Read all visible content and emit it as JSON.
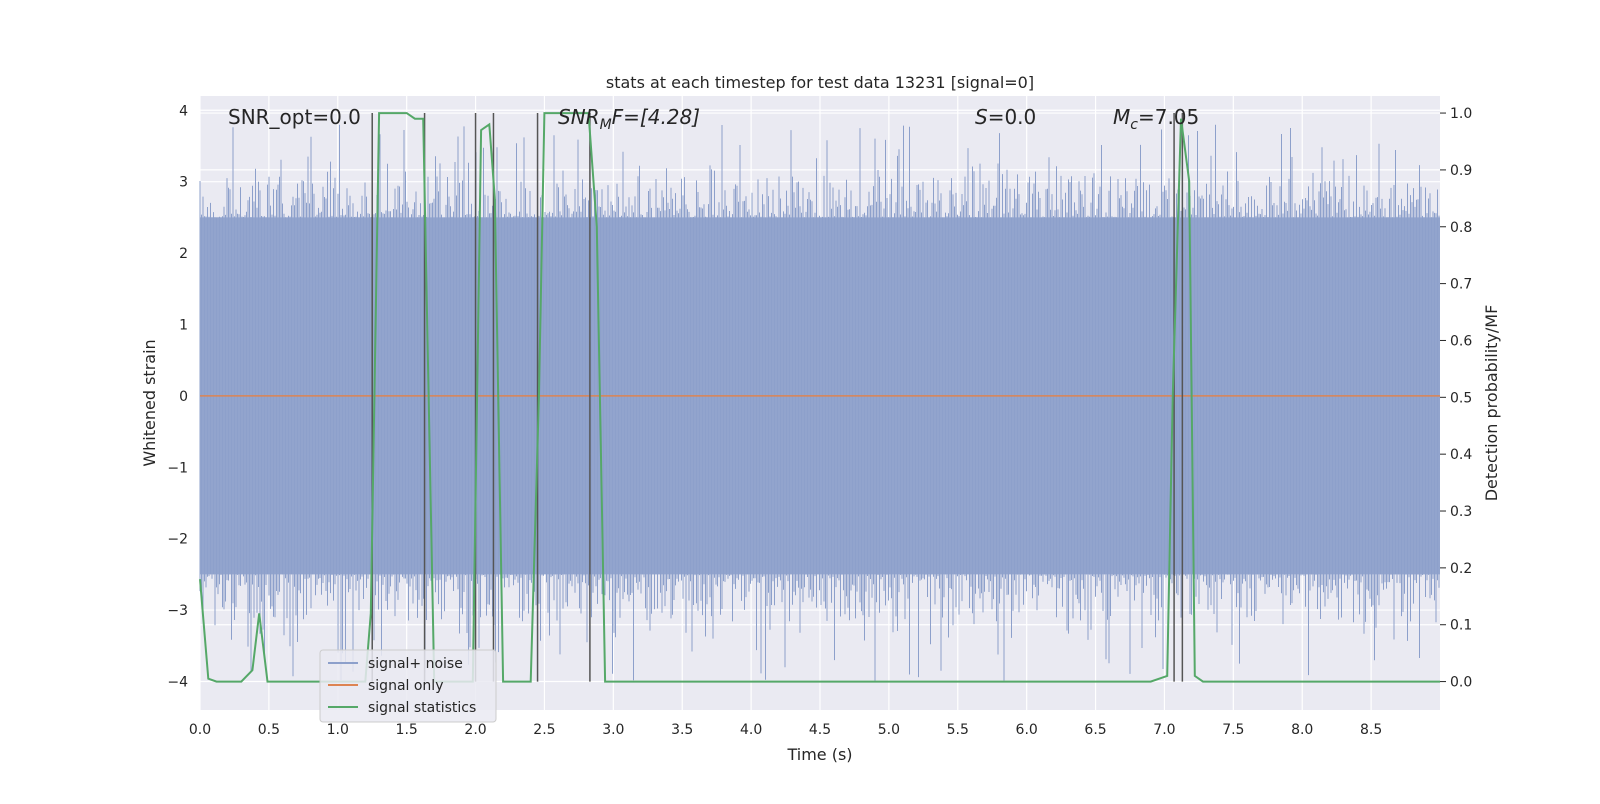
{
  "chart_data": {
    "type": "line",
    "title": "stats at each timestep for test data 13231 [signal=0]",
    "xlabel": "Time (s)",
    "ylabel": "Whitened strain",
    "y2label": "Detection probability/MF",
    "xlim": [
      0.0,
      9.0
    ],
    "ylim": [
      -4.4,
      4.2
    ],
    "y2lim": [
      -0.05,
      1.03
    ],
    "xticks": [
      0.0,
      0.5,
      1.0,
      1.5,
      2.0,
      2.5,
      3.0,
      3.5,
      4.0,
      4.5,
      5.0,
      5.5,
      6.0,
      6.5,
      7.0,
      7.5,
      8.0,
      8.5
    ],
    "xtick_labels": [
      "0.0",
      "0.5",
      "1.0",
      "1.5",
      "2.0",
      "2.5",
      "3.0",
      "3.5",
      "4.0",
      "4.5",
      "5.0",
      "5.5",
      "6.0",
      "6.5",
      "7.0",
      "7.5",
      "8.0",
      "8.5"
    ],
    "yticks": [
      -4,
      -3,
      -2,
      -1,
      0,
      1,
      2,
      3,
      4
    ],
    "ytick_labels": [
      "−4",
      "−3",
      "−2",
      "−1",
      "0",
      "1",
      "2",
      "3",
      "4"
    ],
    "y2ticks": [
      0.0,
      0.1,
      0.2,
      0.3,
      0.4,
      0.5,
      0.6,
      0.7,
      0.8,
      0.9,
      1.0
    ],
    "y2tick_labels": [
      "0.0",
      "0.1",
      "0.2",
      "0.3",
      "0.4",
      "0.5",
      "0.6",
      "0.7",
      "0.8",
      "0.9",
      "1.0"
    ],
    "grid": true,
    "legend_position": "lower-left",
    "annotations": {
      "snr_opt": "SNR_opt=0.0",
      "snr_mf_base": "SNR",
      "snr_mf_sub": "M",
      "snr_mf_rest": "F=[4.28]",
      "s_base": "S",
      "s_rest": "=0.0",
      "mc_base": "M",
      "mc_sub": "c",
      "mc_rest": "=7.05"
    },
    "series": [
      {
        "name": "signal+ noise",
        "color": "#8da0cb",
        "style": "noise-band",
        "band_ylim": [
          -2.5,
          2.5
        ],
        "peak_range": [
          -4.0,
          3.8
        ]
      },
      {
        "name": "signal only",
        "color": "#dd8452",
        "x": [
          0.0,
          9.0
        ],
        "y": [
          0.0,
          0.0
        ]
      },
      {
        "name": "signal statistics",
        "color": "#55a868",
        "axis": "right",
        "x": [
          0.0,
          0.06,
          0.12,
          0.2,
          0.3,
          0.38,
          0.43,
          0.49,
          0.55,
          1.0,
          1.2,
          1.24,
          1.3,
          1.36,
          1.42,
          1.5,
          1.56,
          1.62,
          1.7,
          1.8,
          1.9,
          1.98,
          2.04,
          2.1,
          2.14,
          2.2,
          2.3,
          2.4,
          2.46,
          2.5,
          2.56,
          2.7,
          2.82,
          2.88,
          2.94,
          3.0,
          4.0,
          5.0,
          6.0,
          6.9,
          7.02,
          7.06,
          7.12,
          7.18,
          7.22,
          7.28,
          7.4,
          8.0,
          9.0
        ],
        "y": [
          0.18,
          0.005,
          0.0,
          0.0,
          0.0,
          0.02,
          0.12,
          0.0,
          0.0,
          0.0,
          0.0,
          0.12,
          1.0,
          1.0,
          1.0,
          1.0,
          0.99,
          0.99,
          0.0,
          0.0,
          0.0,
          0.0,
          0.97,
          0.98,
          0.85,
          0.0,
          0.0,
          0.0,
          0.5,
          1.0,
          1.0,
          1.0,
          1.0,
          0.8,
          0.0,
          0.0,
          0.0,
          0.0,
          0.0,
          0.0,
          0.01,
          0.5,
          0.99,
          0.88,
          0.01,
          0.0,
          0.0,
          0.0,
          0.0
        ]
      }
    ],
    "vertical_markers": [
      1.25,
      1.63,
      2.0,
      2.13,
      2.45,
      2.83,
      7.07,
      7.13
    ]
  }
}
